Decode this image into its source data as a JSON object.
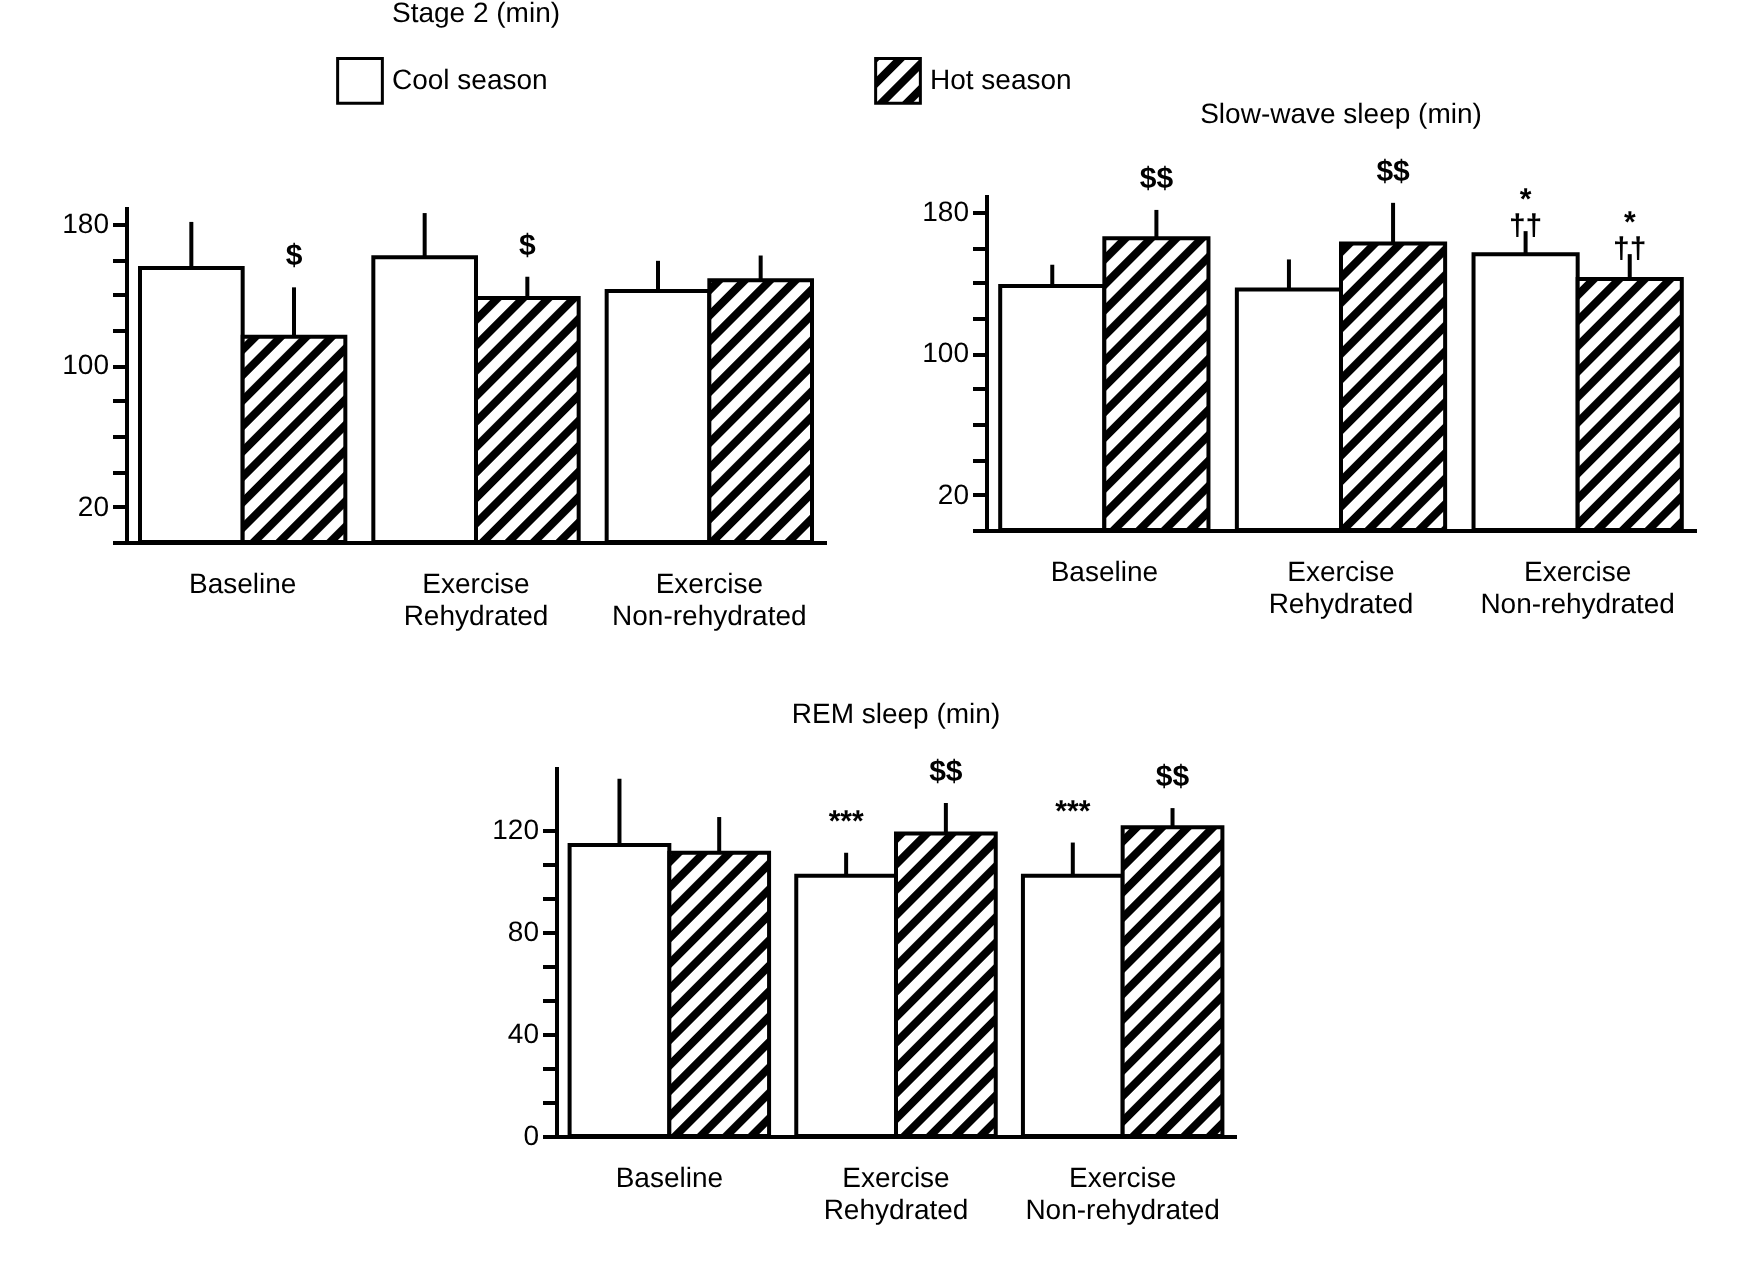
{
  "chart_data": [
    {
      "type": "bar",
      "title": "Stage 2 (min)",
      "categories": [
        "Baseline",
        "Exercise\nRehydrated",
        "Exercise\nNon-rehydrated"
      ],
      "series": [
        {
          "name": "Cool season",
          "color": "#ffffff",
          "values": [
            155,
            161,
            142
          ],
          "errors": [
            26,
            25,
            17
          ]
        },
        {
          "name": "Hot season",
          "color": "#000000",
          "values": [
            116,
            138,
            148
          ],
          "errors": [
            28,
            12,
            14
          ]
        }
      ],
      "ylim": [
        0,
        190
      ],
      "yticks": [
        {
          "value": 0,
          "label": null
        },
        {
          "value": 20,
          "label": "20"
        },
        {
          "value": 40,
          "label": null
        },
        {
          "value": 60,
          "label": null
        },
        {
          "value": 80,
          "label": null
        },
        {
          "value": 100,
          "label": "100"
        },
        {
          "value": 120,
          "label": null
        },
        {
          "value": 140,
          "label": null
        },
        {
          "value": 160,
          "label": null
        },
        {
          "value": 180,
          "label": "180"
        }
      ],
      "annotations": [
        {
          "text": "$",
          "x": "Baseline",
          "y": 116
        },
        {
          "text": "$",
          "x": "Exercise\nRehydrated",
          "y": 138
        }
      ],
      "legend": "top"
    },
    {
      "type": "bar",
      "title": "Slow-wave sleep (min)",
      "categories": [
        "Baseline",
        "Exercise\nRehydrated",
        "Exercise\nNon-rehydrated"
      ],
      "series": [
        {
          "color": "#ffffff",
          "values": [
            138,
            136,
            156
          ],
          "errors": [
            12,
            17,
            13
          ]
        },
        {
          "color": "#000000",
          "values": [
            165,
            162,
            142
          ],
          "errors": [
            16,
            23,
            14
          ]
        }
      ],
      "ylim": [
        0,
        190
      ],
      "yticks": [
        {
          "value": 0,
          "label": null
        },
        {
          "value": 20,
          "label": "20"
        },
        {
          "value": 40,
          "label": null
        },
        {
          "value": 60,
          "label": null
        },
        {
          "value": 80,
          "label": null
        },
        {
          "value": 100,
          "label": "100"
        },
        {
          "value": 120,
          "label": null
        },
        {
          "value": 140,
          "label": null
        },
        {
          "value": 160,
          "label": null
        },
        {
          "value": 180,
          "label": "180"
        }
      ],
      "annotations": [
        {
          "text": "$$",
          "x": "Baseline",
          "y": 165
        },
        {
          "text": "$$",
          "x": "Exercise\nRehydrated",
          "y": 162
        },
        {
          "text": "*\n††",
          "x": "Exercise\nNon-rehydrated",
          "y": 156
        },
        {
          "text": "*\n††",
          "x": "Exercise\nNon-rehydrated",
          "y": 142
        }
      ]
    },
    {
      "type": "bar",
      "title": "REM sleep (min)",
      "categories": [
        "Baseline",
        "Exercise\nRehydrated",
        "Exercise\nNon-rehydrated"
      ],
      "series": [
        {
          "color": "#ffffff",
          "values": [
            114,
            102,
            102
          ],
          "errors": [
            26,
            9,
            13
          ]
        },
        {
          "color": "#000000",
          "values": [
            111,
            118.5,
            121
          ],
          "errors": [
            14,
            12,
            7.5
          ]
        }
      ],
      "ylim": [
        0,
        145
      ],
      "yticks": [
        {
          "value": 0,
          "label": "0"
        },
        {
          "value": 13.33,
          "label": null
        },
        {
          "value": 26.67,
          "label": null
        },
        {
          "value": 40,
          "label": "40"
        },
        {
          "value": 53.33,
          "label": null
        },
        {
          "value": 66.67,
          "label": null
        },
        {
          "value": 80,
          "label": "80"
        },
        {
          "value": 93.33,
          "label": null
        },
        {
          "value": 106.67,
          "label": null
        },
        {
          "value": 120,
          "label": "120"
        }
      ],
      "annotations": [
        {
          "text": "***",
          "x": "Exercise\nRehydrated",
          "y": 102
        },
        {
          "text": "$$",
          "x": "Exercise\nRehydrated",
          "y": 118.5
        },
        {
          "text": "***",
          "x": "Exercise\nNon-rehydrated",
          "y": 102
        },
        {
          "text": "$$",
          "x": "Exercise\nNon-rehydrated",
          "y": 121
        }
      ]
    }
  ]
}
